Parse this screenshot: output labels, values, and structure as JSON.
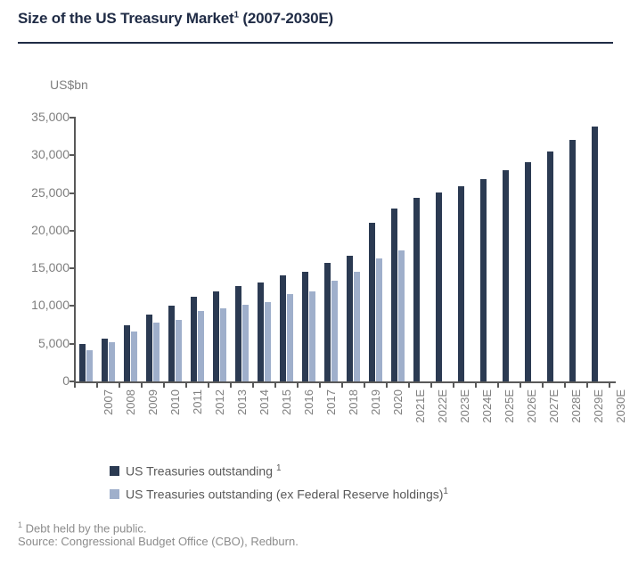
{
  "header": {
    "title_main": "Size of the US Treasury Market",
    "title_sup": "1",
    "title_tail": " (2007-2030E)"
  },
  "chart_data": {
    "type": "bar",
    "title": "Size of the US Treasury Market (2007-2030E)",
    "ylabel": "US$bn",
    "xlabel": "",
    "ylim": [
      0,
      35000
    ],
    "ytick_step": 5000,
    "ytick_labels": [
      "35,000",
      "30,000",
      "25,000",
      "20,000",
      "15,000",
      "10,000",
      "5,000",
      "0"
    ],
    "grid": false,
    "legend_position": "bottom-left",
    "categories": [
      "2007",
      "2008",
      "2009",
      "2010",
      "2011",
      "2012",
      "2013",
      "2014",
      "2015",
      "2016",
      "2017",
      "2018",
      "2019",
      "2020",
      "2021E",
      "2022E",
      "2023E",
      "2024E",
      "2025E",
      "2026E",
      "2027E",
      "2028E",
      "2029E",
      "2030E"
    ],
    "series": [
      {
        "name": "US Treasuries outstanding",
        "color": "#2b3a52",
        "values": [
          5000,
          5700,
          7500,
          8900,
          10100,
          11200,
          11900,
          12700,
          13100,
          14100,
          14600,
          15700,
          16700,
          21000,
          22900,
          24400,
          25100,
          25900,
          26900,
          28000,
          29100,
          30500,
          32000,
          33800
        ]
      },
      {
        "name": "US Treasuries outstanding (ex Federal Reserve holdings)",
        "color": "#9fafcb",
        "values": [
          4200,
          5200,
          6600,
          7800,
          8200,
          9400,
          9700,
          10200,
          10500,
          11600,
          12000,
          13400,
          14500,
          16300,
          17400,
          null,
          null,
          null,
          null,
          null,
          null,
          null,
          null,
          null
        ]
      }
    ]
  },
  "legend": {
    "items": [
      {
        "label": "US Treasuries outstanding",
        "sup": "1",
        "color": "#2b3a52"
      },
      {
        "label": "US Treasuries outstanding (ex Federal Reserve holdings)",
        "sup": "1",
        "color": "#9fafcb"
      }
    ]
  },
  "footnotes": {
    "marker": "1",
    "note": " Debt held by the public.",
    "source": "Source: Congressional Budget Office (CBO), Redburn."
  }
}
